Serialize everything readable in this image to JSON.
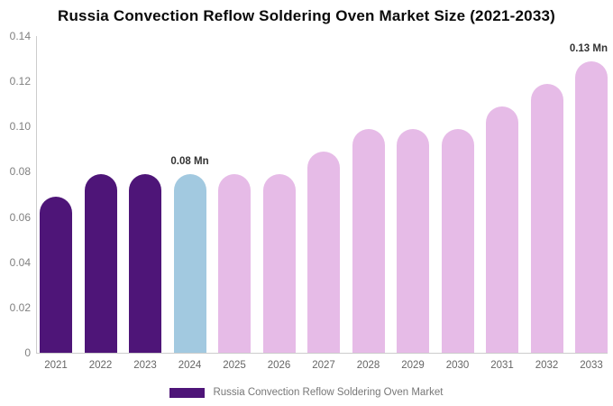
{
  "header": {
    "title": "Russia Convection Reflow Soldering Oven Market Size (2021-2033)"
  },
  "legend": {
    "label": "Russia Convection Reflow Soldering Oven Market",
    "swatch_color": "#4e1578"
  },
  "colors": {
    "historical_bar": "#4e1578",
    "base_year_bar": "#a2c9e0",
    "forecast_bar": "#e6bbe7",
    "axis_line": "#cccccc",
    "tick_text": "#808080",
    "data_label_text": "#333333"
  },
  "chart_data": {
    "type": "bar",
    "title": "Russia Convection Reflow Soldering Oven Market Size (2021-2033)",
    "xlabel": "",
    "ylabel": "",
    "ylim": [
      0,
      0.14
    ],
    "grid": false,
    "legend_position": "bottom",
    "categories": [
      "2021",
      "2022",
      "2023",
      "2024",
      "2025",
      "2026",
      "2027",
      "2028",
      "2029",
      "2030",
      "2031",
      "2032",
      "2033"
    ],
    "series": [
      {
        "name": "Russia Convection Reflow Soldering Oven Market",
        "unit": "Mn",
        "values": [
          0.069,
          0.079,
          0.079,
          0.079,
          0.079,
          0.079,
          0.089,
          0.099,
          0.099,
          0.099,
          0.109,
          0.119,
          0.129
        ]
      }
    ],
    "bar_colors": [
      "#4e1578",
      "#4e1578",
      "#4e1578",
      "#a2c9e0",
      "#e6bbe7",
      "#e6bbe7",
      "#e6bbe7",
      "#e6bbe7",
      "#e6bbe7",
      "#e6bbe7",
      "#e6bbe7",
      "#e6bbe7",
      "#e6bbe7"
    ],
    "yticks": [
      "0",
      "0.02",
      "0.04",
      "0.06",
      "0.08",
      "0.10",
      "0.12",
      "0.14"
    ],
    "annotations": [
      {
        "category": "2024",
        "text": "0.08 Mn"
      },
      {
        "category": "2033",
        "text": "0.13 Mn"
      }
    ]
  }
}
